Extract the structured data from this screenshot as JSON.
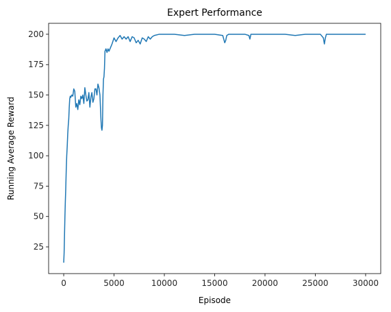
{
  "chart_data": {
    "type": "line",
    "title": "Expert Performance",
    "xlabel": "Episode",
    "ylabel": "Running Average Reward",
    "xlim": [
      -1500,
      31500
    ],
    "ylim": [
      3,
      209
    ],
    "xticks": [
      0,
      5000,
      10000,
      15000,
      20000,
      25000,
      30000
    ],
    "yticks": [
      25,
      50,
      75,
      100,
      125,
      150,
      175,
      200
    ],
    "grid": false,
    "legend": "none",
    "series": [
      {
        "color": "#1f77b4",
        "x": [
          0,
          40,
          80,
          120,
          160,
          200,
          250,
          300,
          350,
          400,
          450,
          500,
          550,
          600,
          650,
          700,
          800,
          900,
          1000,
          1100,
          1200,
          1300,
          1400,
          1500,
          1600,
          1700,
          1800,
          1900,
          2000,
          2100,
          2200,
          2300,
          2400,
          2500,
          2600,
          2700,
          2800,
          2900,
          3000,
          3100,
          3200,
          3300,
          3400,
          3500,
          3600,
          3700,
          3750,
          3800,
          3850,
          3900,
          3950,
          4000,
          4050,
          4100,
          4200,
          4300,
          4400,
          4500,
          4600,
          4700,
          4800,
          5000,
          5200,
          5400,
          5600,
          5800,
          6000,
          6200,
          6400,
          6600,
          6800,
          7000,
          7200,
          7400,
          7600,
          7800,
          8000,
          8200,
          8400,
          8600,
          8800,
          9000,
          9500,
          10000,
          11000,
          12000,
          13000,
          14000,
          15000,
          15800,
          16000,
          16100,
          16200,
          16400,
          17000,
          18000,
          18400,
          18500,
          18600,
          19000,
          20000,
          21000,
          22000,
          23000,
          24000,
          25000,
          25500,
          25800,
          25900,
          26000,
          26100,
          26300,
          27000,
          28000,
          29000,
          30000
        ],
        "y": [
          12,
          20,
          35,
          50,
          62,
          72,
          88,
          100,
          108,
          118,
          125,
          130,
          140,
          147,
          149,
          148,
          150,
          149,
          155,
          153,
          140,
          143,
          138,
          146,
          142,
          149,
          147,
          150,
          143,
          156,
          150,
          145,
          146,
          152,
          140,
          148,
          152,
          144,
          147,
          155,
          155,
          150,
          159,
          156,
          150,
          130,
          123,
          121,
          125,
          150,
          163,
          165,
          172,
          186,
          188,
          185,
          188,
          186,
          188,
          190,
          192,
          197,
          194,
          197,
          199,
          196,
          198,
          196,
          198,
          194,
          198,
          197,
          193,
          195,
          192,
          197,
          196,
          194,
          198,
          196,
          198,
          199,
          200,
          200,
          200,
          199,
          200,
          200,
          200,
          199,
          193,
          195,
          199,
          200,
          200,
          200,
          199,
          196,
          200,
          200,
          200,
          200,
          200,
          199,
          200,
          200,
          200,
          197,
          192,
          197,
          200,
          200,
          200,
          200,
          200,
          200
        ]
      }
    ]
  }
}
